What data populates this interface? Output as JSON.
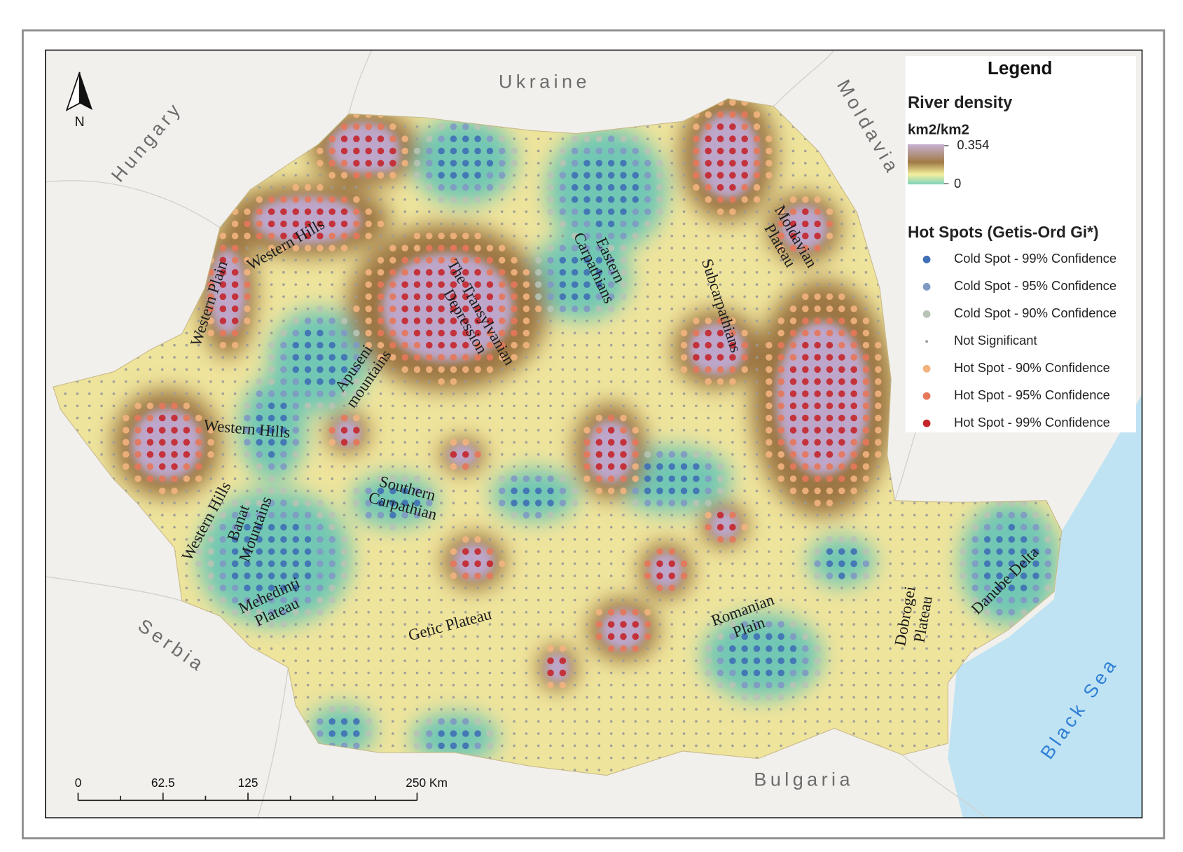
{
  "map": {
    "countries": {
      "ukraine": "Ukraine",
      "hungary": "Hungary",
      "moldavia": "Moldavia",
      "serbia": "Serbia",
      "bulgaria": "Bulgaria",
      "black_sea": "Black Sea"
    },
    "regions": {
      "western_hills_north": [
        "Western Hills"
      ],
      "western_plain": [
        "Western Plain"
      ],
      "transylvanian_depression": [
        "The Transylvanian",
        "Depression"
      ],
      "apuseni_mountains": [
        "Apuseni",
        "mountains"
      ],
      "eastern_carpathians": [
        "Eastern",
        "Carpathians"
      ],
      "subcarpathians": [
        "Subcarpathians"
      ],
      "moldavian_plateau": [
        "Moldavian",
        "Plateau"
      ],
      "western_hills_middle": [
        "Western Hills"
      ],
      "western_hills_south": [
        "Western Hills"
      ],
      "banat_mountains": [
        "Banat",
        "Mountains"
      ],
      "southern_carpathian": [
        "Southern",
        "Carpathian"
      ],
      "mehedinti_plateau": [
        "Mehedinți",
        "Plateau"
      ],
      "getic_plateau": [
        "Getic Plateau"
      ],
      "romanian_plain": [
        "Romanian",
        "Plain"
      ],
      "dobrogei_plateau": [
        "Dobrogei",
        "Plateau"
      ],
      "danube_delta": [
        "Danube Delta"
      ]
    }
  },
  "north_arrow": "N",
  "legend": {
    "title": "Legend",
    "density_title": "River density",
    "density_unit": "km2/km2",
    "density_max": "0.354",
    "density_min": "0",
    "hotspot_title": "Hot Spots (Getis-Ord Gi*)",
    "items": [
      {
        "label": "Cold Spot - 99% Confidence",
        "color": "#3f6fb5"
      },
      {
        "label": "Cold Spot - 95% Confidence",
        "color": "#7f99c3"
      },
      {
        "label": "Cold Spot - 90% Confidence",
        "color": "#b7c3b5"
      },
      {
        "label": "Not Significant",
        "color": "#9a9a9a"
      },
      {
        "label": "Hot Spot - 90% Confidence",
        "color": "#f2b27e"
      },
      {
        "label": "Hot Spot - 95% Confidence",
        "color": "#e6775a"
      },
      {
        "label": "Hot Spot - 99% Confidence",
        "color": "#c4262b"
      }
    ]
  },
  "scale_bar": {
    "labels": [
      "0",
      "62.5",
      "125",
      "250 Km"
    ]
  }
}
